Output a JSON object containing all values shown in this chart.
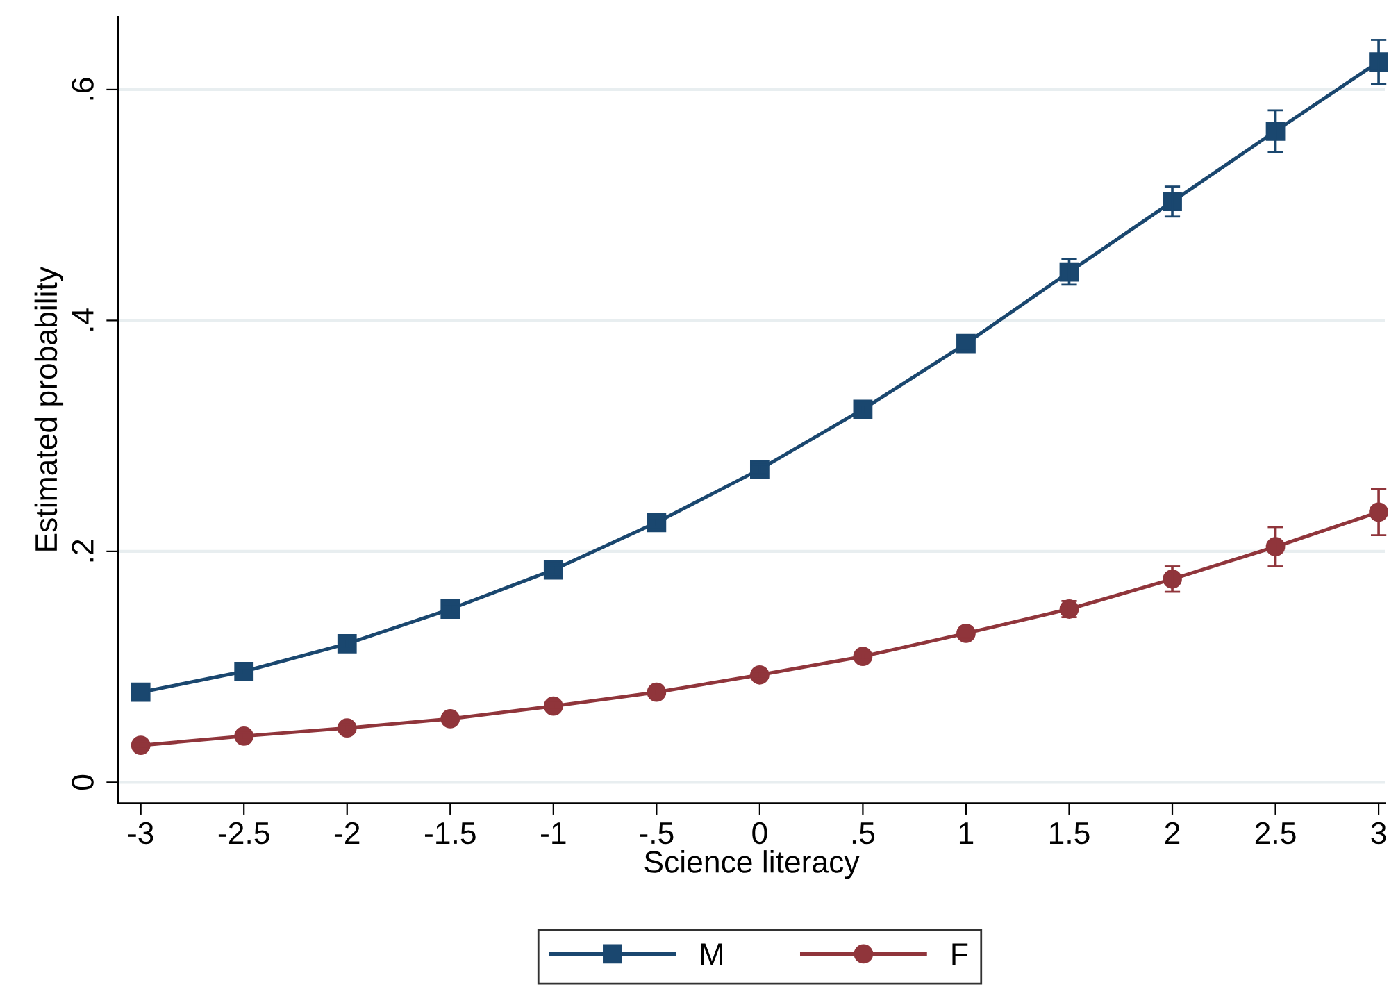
{
  "chart_data": {
    "type": "line",
    "xlabel": "Science literacy",
    "ylabel": "Estimated probability",
    "x": [
      -3,
      -2.5,
      -2,
      -1.5,
      -1,
      -0.5,
      0,
      0.5,
      1,
      1.5,
      2,
      2.5,
      3
    ],
    "series": [
      {
        "name": "M",
        "color": "#1a476f",
        "marker": "square",
        "values": [
          0.078,
          0.096,
          0.12,
          0.15,
          0.184,
          0.225,
          0.271,
          0.323,
          0.38,
          0.442,
          0.503,
          0.564,
          0.624
        ],
        "errors": [
          0.003,
          0.003,
          0.004,
          0.004,
          0.004,
          0.004,
          0.004,
          0.004,
          0.006,
          0.011,
          0.013,
          0.018,
          0.019
        ]
      },
      {
        "name": "F",
        "color": "#90353b",
        "marker": "circle",
        "values": [
          0.032,
          0.04,
          0.047,
          0.055,
          0.066,
          0.078,
          0.093,
          0.109,
          0.129,
          0.15,
          0.176,
          0.204,
          0.234
        ],
        "errors": [
          0.003,
          0.003,
          0.003,
          0.003,
          0.003,
          0.003,
          0.003,
          0.003,
          0.004,
          0.007,
          0.011,
          0.017,
          0.02
        ]
      }
    ],
    "xlim": [
      -3.11,
      3.03
    ],
    "xticks": [
      -3,
      -2.5,
      -2,
      -1.5,
      -1,
      {
        "value": -0.5,
        "label": "-.5"
      },
      0,
      {
        "value": 0.5,
        "label": ".5"
      },
      1,
      1.5,
      2,
      2.5,
      3
    ],
    "ylim": [
      -0.018,
      0.663
    ],
    "yticks": [
      0,
      {
        "value": 0.2,
        "label": ".2"
      },
      {
        "value": 0.4,
        "label": ".4"
      },
      {
        "value": 0.6,
        "label": ".6"
      }
    ],
    "grid": "y",
    "legend": "bottom",
    "line_style": "solid"
  }
}
